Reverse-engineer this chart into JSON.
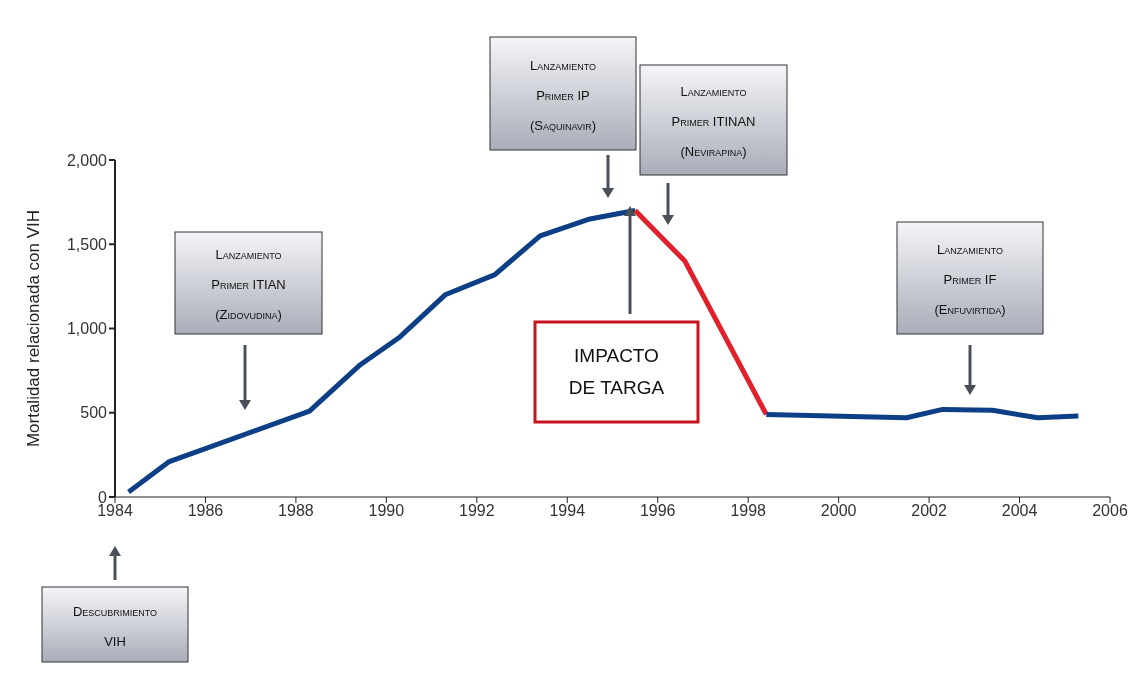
{
  "chart_data": {
    "type": "line",
    "ylabel": "Mortalidad relacionada con VIH",
    "series": [
      {
        "color": "#0d3f86",
        "x": [
          1984.3,
          1985.2,
          1988.3,
          1989.4,
          1990.3,
          1991.3,
          1992.4,
          1993.4,
          1994.5,
          1995.5
        ],
        "values": [
          30,
          210,
          510,
          780,
          950,
          1200,
          1320,
          1550,
          1650,
          1700
        ]
      },
      {
        "color": "#e0202a",
        "x": [
          1995.5,
          1996.6,
          1998.4
        ],
        "values": [
          1700,
          1400,
          490
        ]
      },
      {
        "color": "#0d3f86",
        "x": [
          1998.4,
          2001.5,
          2002.3,
          2003.4,
          2004.4,
          2005.3
        ],
        "values": [
          490,
          470,
          520,
          515,
          470,
          480
        ]
      }
    ],
    "xlim": [
      1984,
      2006
    ],
    "xticks": [
      1984,
      1986,
      1988,
      1990,
      1992,
      1994,
      1996,
      1998,
      2000,
      2002,
      2004,
      2006
    ],
    "ylim": [
      0,
      2000
    ],
    "yticks": [
      0,
      {
        "value": 500,
        "label": "500"
      },
      {
        "value": 1000,
        "label": "1,000"
      },
      {
        "value": 1500,
        "label": "1,500"
      },
      {
        "value": 2000,
        "label": "2,000"
      }
    ],
    "grid": false,
    "marker": "none",
    "line_style": "solid",
    "annotations": [
      "Descubrimiento\nVIH",
      "Lanzamiento\nPrimer ITIAN\n(Zidovudina)",
      "Lanzamiento\nPrimer IP\n(Saquinavir)",
      "Lanzamiento\nPrimer ITINAN\n(Nevirapina)",
      "IMPACTO\nDE TARGA",
      "Lanzamiento\nPrimer IF\n(Enfuvirtida)"
    ]
  }
}
